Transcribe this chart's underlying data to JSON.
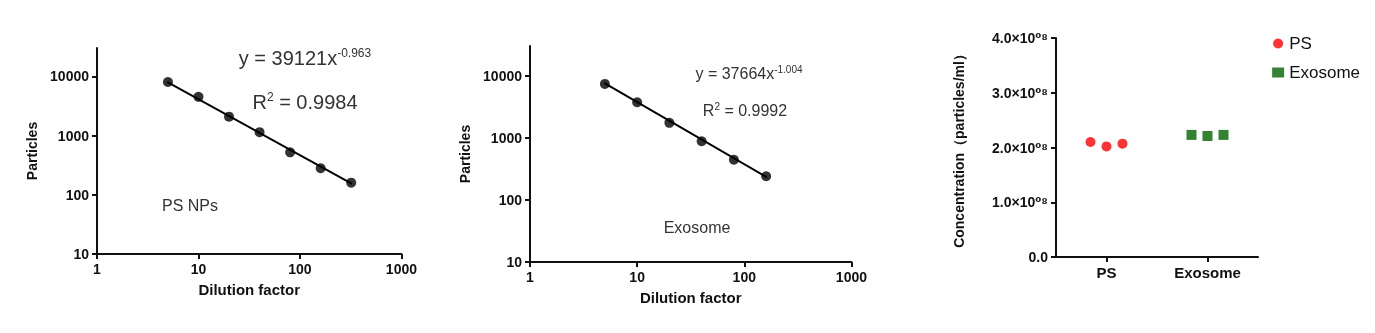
{
  "chart_data": [
    {
      "type": "scatter",
      "log": "xy",
      "xlabel": "Dilution factor",
      "ylabel": "Particles",
      "xlim": [
        1,
        1000
      ],
      "xticks": [
        1,
        10,
        100,
        1000
      ],
      "ylim": [
        10,
        30000
      ],
      "yticks": [
        10,
        100,
        1000,
        10000
      ],
      "grid": false,
      "annotations": [
        "y = 39121x$^{-0.963}$",
        "R$^{2}$ = 0.9984",
        "PS NPs"
      ],
      "series": [
        {
          "type": "scatter",
          "color": "#000000",
          "marker": "circle",
          "x": [
            5,
            10,
            20,
            40,
            80,
            160,
            320
          ],
          "values": [
            8000,
            4500,
            2080,
            1140,
            520,
            280,
            160
          ]
        },
        {
          "type": "line",
          "color": "#000000",
          "marker": "none",
          "line_style": "solid",
          "x": [
            5,
            320
          ],
          "values": [
            7900,
            155
          ]
        }
      ]
    },
    {
      "type": "scatter",
      "log": "xy",
      "xlabel": "Dilution factor",
      "ylabel": "Particles",
      "xlim": [
        1,
        1000
      ],
      "xticks": [
        1,
        10,
        100,
        1000
      ],
      "ylim": [
        10,
        30000
      ],
      "yticks": [
        10,
        100,
        1000,
        10000
      ],
      "grid": false,
      "annotations": [
        "y = 37664x$^{-1.004}$",
        "R$^{2}$ = 0.9992",
        "Exosome"
      ],
      "series": [
        {
          "type": "scatter",
          "color": "#000000",
          "marker": "circle",
          "x": [
            5,
            10,
            20,
            40,
            80,
            160
          ],
          "values": [
            7350,
            3730,
            1740,
            880,
            443,
            240
          ]
        },
        {
          "type": "line",
          "color": "#000000",
          "marker": "none",
          "line_style": "solid",
          "x": [
            5,
            160
          ],
          "values": [
            7500,
            235
          ]
        }
      ]
    },
    {
      "type": "scatter",
      "ylabel": "Concentration（particles/ml）",
      "categories": [
        "PS",
        "Exosome"
      ],
      "ylim": [
        0,
        400000000
      ],
      "yticks": [
        {
          "value": 0,
          "label": "0.0"
        },
        {
          "value": 100000000,
          "label": "1.0×10⁰⁸"
        },
        {
          "value": 200000000,
          "label": "2.0×10⁰⁸"
        },
        {
          "value": 300000000,
          "label": "3.0×10⁰⁸"
        },
        {
          "value": 400000000,
          "label": "4.0×10⁰⁸"
        }
      ],
      "grid": false,
      "legend": "top right",
      "series": [
        {
          "name": "PS",
          "color": "#ff0000",
          "marker": "circle",
          "x": [
            "PS",
            "PS",
            "PS"
          ],
          "values": [
            210000000,
            202000000,
            207000000
          ]
        },
        {
          "name": "Exosome",
          "color": "#006400",
          "marker": "square",
          "x": [
            "Exosome",
            "Exosome",
            "Exosome"
          ],
          "values": [
            223000000,
            221000000,
            223000000
          ]
        }
      ]
    }
  ]
}
